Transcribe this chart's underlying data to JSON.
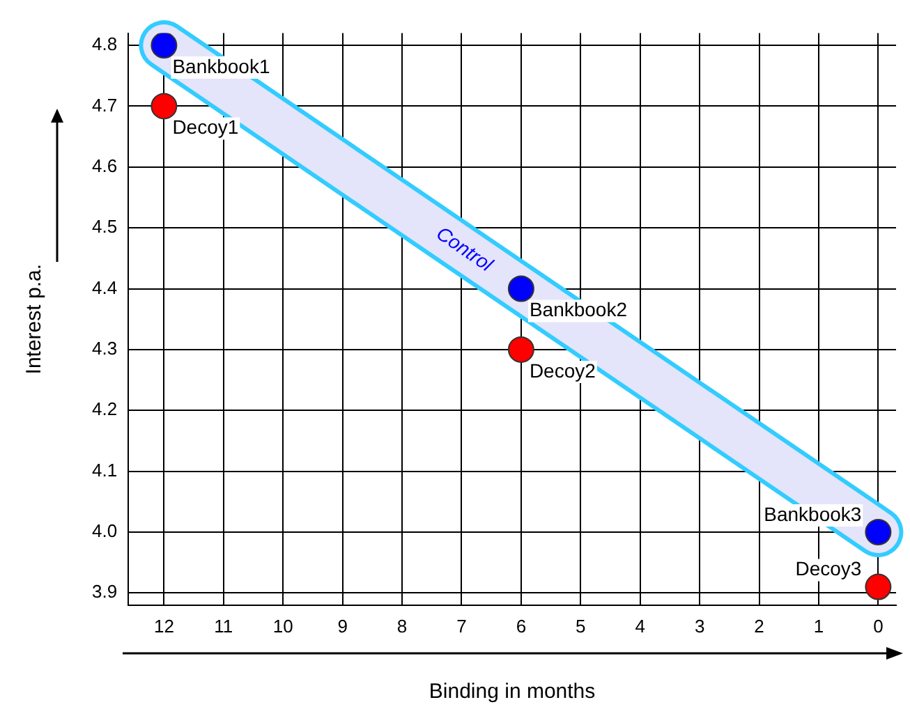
{
  "chart_data": {
    "type": "scatter",
    "xlabel": "Binding in months",
    "ylabel": "Interest p.a.",
    "xlim": [
      12.6,
      -0.3
    ],
    "ylim": [
      3.88,
      4.82
    ],
    "xticks": [
      12,
      11,
      10,
      9,
      8,
      7,
      6,
      5,
      4,
      3,
      2,
      1,
      0
    ],
    "yticks": [
      {
        "value": 3.9,
        "label": "3.9"
      },
      {
        "value": 4,
        "label": "4.0"
      },
      4.1,
      4.2,
      4.3,
      4.4,
      4.5,
      4.6,
      4.7,
      4.8
    ],
    "grid": true,
    "legend": false,
    "marker": "circle",
    "series": [
      {
        "color": "#0000ff",
        "x": [
          12,
          6,
          0
        ],
        "values": [
          4.8,
          4.4,
          4.0
        ]
      },
      {
        "color": "#ff0000",
        "x": [
          12,
          6,
          0
        ],
        "values": [
          4.7,
          4.3,
          3.91
        ]
      }
    ],
    "annotations": [
      {
        "text": "Bankbook1",
        "x": 12,
        "y": 4.8
      },
      {
        "text": "Decoy1",
        "x": 12,
        "y": 4.7
      },
      {
        "text": "Bankbook2",
        "x": 6,
        "y": 4.4
      },
      {
        "text": "Decoy2",
        "x": 6,
        "y": 4.3
      },
      {
        "text": "Bankbook3",
        "x": 0,
        "y": 4.0
      },
      {
        "text": "Decoy3",
        "x": 0,
        "y": 3.91
      },
      "Control"
    ]
  }
}
